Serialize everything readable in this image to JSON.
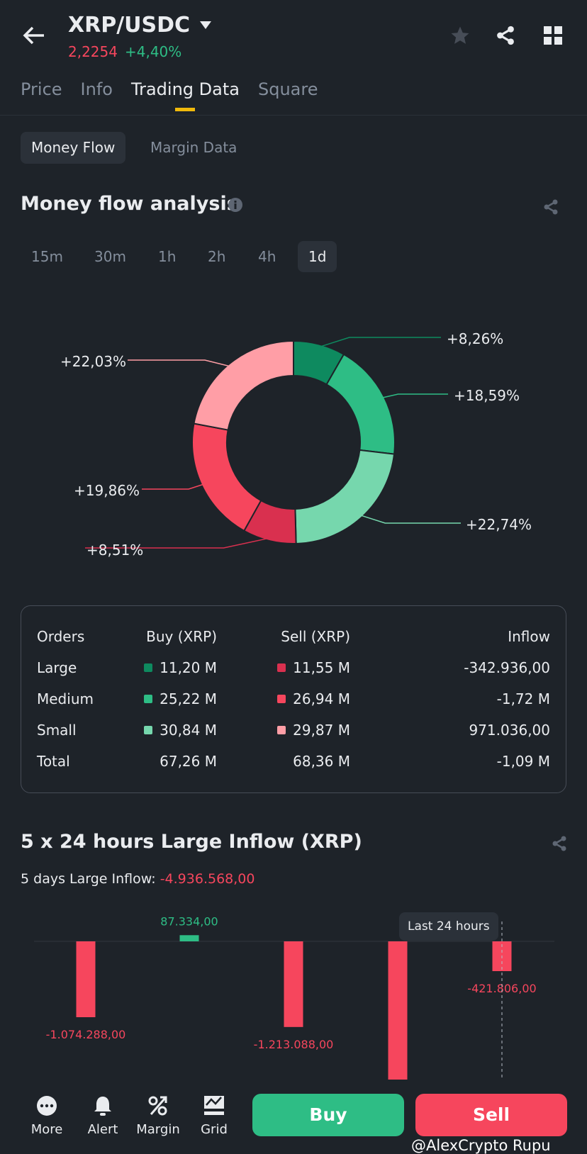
{
  "header": {
    "pair": "XRP/USDC",
    "price": "2,2254",
    "change": "+4,40%",
    "icons": [
      "back-arrow-icon",
      "caret-down-icon",
      "star-icon",
      "share-icon",
      "grid-icon"
    ]
  },
  "tabs": [
    {
      "label": "Price"
    },
    {
      "label": "Info"
    },
    {
      "label": "Trading Data",
      "active": true
    },
    {
      "label": "Square"
    }
  ],
  "subtabs": [
    {
      "label": "Money Flow",
      "active": true
    },
    {
      "label": "Margin Data"
    }
  ],
  "money_flow": {
    "title": "Money flow analysis",
    "timeframes": [
      "15m",
      "30m",
      "1h",
      "2h",
      "4h",
      "1d"
    ],
    "selected_timeframe": "1d"
  },
  "chart_data": [
    {
      "type": "pie",
      "donut": true,
      "segments": [
        {
          "label": "+8,26%",
          "value": 8.26,
          "color": "#0e8a5f"
        },
        {
          "label": "+18,59%",
          "value": 18.59,
          "color": "#2ebd85"
        },
        {
          "label": "+22,74%",
          "value": 22.74,
          "color": "#76d7ad"
        },
        {
          "label": "+8,51%",
          "value": 8.51,
          "color": "#d9304f"
        },
        {
          "label": "+19,86%",
          "value": 19.86,
          "color": "#f6465d"
        },
        {
          "label": "+22,03%",
          "value": 22.03,
          "color": "#ff9ea6"
        }
      ]
    },
    {
      "type": "bar",
      "title": "5 x 24 hours Large Inflow (XRP)",
      "values": [
        -1074288,
        87334,
        -1213088,
        null,
        -421806
      ],
      "labels": [
        "-1.074.288,00",
        "87.334,00",
        "-1.213.088,00",
        "",
        "-421.806,00"
      ],
      "highlight": "Last 24 hours",
      "positive_color": "#2ebd85",
      "negative_color": "#f6465d"
    }
  ],
  "orders_table": {
    "headers": [
      "Orders",
      "Buy (XRP)",
      "Sell (XRP)",
      "Inflow"
    ],
    "rows": [
      {
        "name": "Large",
        "buy": "11,20 M",
        "sell": "11,55 M",
        "inflow": "-342.936,00",
        "buy_color": "#0e8a5f",
        "sell_color": "#d9304f"
      },
      {
        "name": "Medium",
        "buy": "25,22 M",
        "sell": "26,94 M",
        "inflow": "-1,72 M",
        "buy_color": "#2ebd85",
        "sell_color": "#f6465d"
      },
      {
        "name": "Small",
        "buy": "30,84 M",
        "sell": "29,87 M",
        "inflow": "971.036,00",
        "buy_color": "#76d7ad",
        "sell_color": "#ff9ea6"
      },
      {
        "name": "Total",
        "buy": "67,26 M",
        "sell": "68,36 M",
        "inflow": "-1,09 M"
      }
    ]
  },
  "large_inflow": {
    "title": "5 x 24 hours Large Inflow (XRP)",
    "summary_label": "5 days Large Inflow:",
    "summary_value": "-4.936.568,00",
    "tooltip": "Last 24 hours"
  },
  "bottom_nav": [
    {
      "label": "More",
      "icon": "more-icon"
    },
    {
      "label": "Alert",
      "icon": "bell-icon"
    },
    {
      "label": "Margin",
      "icon": "percent-icon"
    },
    {
      "label": "Grid",
      "icon": "grid-trading-icon"
    }
  ],
  "actions": {
    "buy": "Buy",
    "sell": "Sell"
  },
  "watermark": "@AlexCrypto Rupu"
}
